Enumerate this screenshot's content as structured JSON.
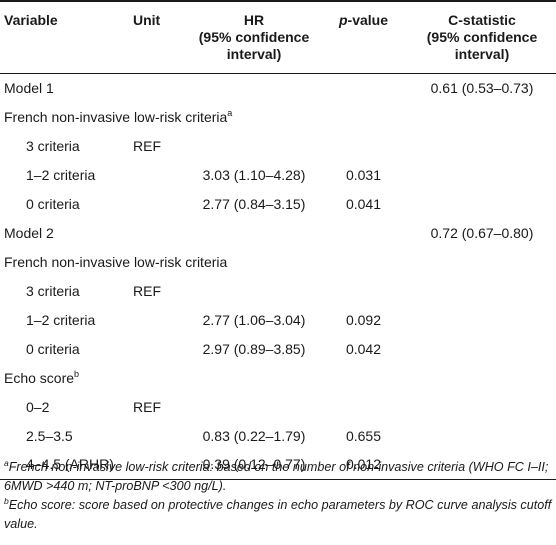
{
  "headers": {
    "variable": "Variable",
    "unit": "Unit",
    "hr_line1": "HR",
    "hr_line2": "(95% confidence",
    "hr_line3": "interval)",
    "p_italic": "p",
    "p_rest": "-value",
    "cstat_line1": "C-statistic",
    "cstat_line2": "(95% confidence",
    "cstat_line3": "interval)"
  },
  "rows": [
    {
      "variable": "Model 1",
      "sup": "",
      "unit": "",
      "hr": "",
      "p": "",
      "cstat": "0.61 (0.53–0.73)"
    },
    {
      "variable": "French non-invasive low-risk criteria",
      "sup": "a",
      "unit": "",
      "hr": "",
      "p": "",
      "cstat": ""
    },
    {
      "variable": "3 criteria",
      "sup": "",
      "unit": "REF",
      "hr": "",
      "p": "",
      "cstat": ""
    },
    {
      "variable": "1–2 criteria",
      "sup": "",
      "unit": "",
      "hr": "3.03 (1.10–4.28)",
      "p": "0.031",
      "cstat": ""
    },
    {
      "variable": "0 criteria",
      "sup": "",
      "unit": "",
      "hr": "2.77 (0.84–3.15)",
      "p": "0.041",
      "cstat": ""
    },
    {
      "variable": "Model 2",
      "sup": "",
      "unit": "",
      "hr": "",
      "p": "",
      "cstat": "0.72 (0.67–0.80)"
    },
    {
      "variable": "French non-invasive low-risk criteria",
      "sup": "",
      "unit": "",
      "hr": "",
      "p": "",
      "cstat": ""
    },
    {
      "variable": "3 criteria",
      "sup": "",
      "unit": "REF",
      "hr": "",
      "p": "",
      "cstat": ""
    },
    {
      "variable": "1–2 criteria",
      "sup": "",
      "unit": "",
      "hr": "2.77 (1.06–3.04)",
      "p": "0.092",
      "cstat": ""
    },
    {
      "variable": "0 criteria",
      "sup": "",
      "unit": "",
      "hr": "2.97 (0.89–3.85)",
      "p": "0.042",
      "cstat": ""
    },
    {
      "variable": "Echo score",
      "sup": "b",
      "unit": "",
      "hr": "",
      "p": "",
      "cstat": ""
    },
    {
      "variable": "0–2",
      "sup": "",
      "unit": "REF",
      "hr": "",
      "p": "",
      "cstat": ""
    },
    {
      "variable": "2.5–3.5",
      "sup": "",
      "unit": "",
      "hr": "0.83 (0.22–1.79)",
      "p": "0.655",
      "cstat": ""
    },
    {
      "variable": "4–4.5 (ARHR)",
      "sup": "",
      "unit": "",
      "hr": "0.39 (0.12–0.77)",
      "p": "0.012",
      "cstat": ""
    }
  ],
  "footnotes": [
    {
      "mark": "a",
      "text": "French non-invasive low-risk criteria: based on the number of non-invasive criteria (WHO FC I–II; 6MWD >440 m; NT-proBNP <300 ng/L)."
    },
    {
      "mark": "b",
      "text": "Echo score: score based on protective changes in echo parameters by ROC curve analysis cutoff value."
    }
  ]
}
